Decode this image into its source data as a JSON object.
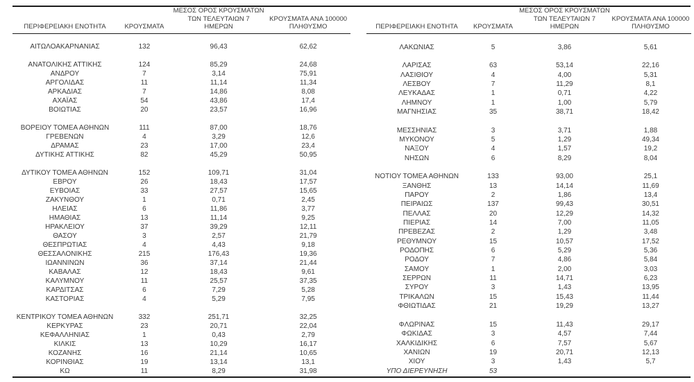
{
  "colors": {
    "text": "#3b3b3b",
    "rule": "#1c1c1c",
    "background": "#ffffff"
  },
  "columns": {
    "region": "ΠΕΡΙΦΕΡΕΙΑΚΗ ΕΝΟΤΗΤΑ",
    "cases": "ΚΡΟΥΣΜΑΤΑ",
    "avg7": "ΜΕΣΟΣ ΟΡΟΣ ΚΡΟΥΣΜΑΤΩΝ\nΤΩΝ ΤΕΛΕΥΤΑΙΩΝ 7\nΗΜΕΡΩΝ",
    "per100k": "ΚΡΟΥΣΜΑΤΑ ΑΝΑ 100000\nΠΛΗΘΥΣΜΟ"
  },
  "left_table": {
    "rows": [
      {
        "spacer": true
      },
      {
        "name": "ΑΙΤΩΛΟΑΚΑΡΝΑΝΙΑΣ",
        "cases": "132",
        "avg7": "96,43",
        "per100k": "62,62"
      },
      {
        "spacer": true
      },
      {
        "name": "ΑΝΑΤΟΛΙΚΗΣ ΑΤΤΙΚΗΣ",
        "cases": "124",
        "avg7": "85,29",
        "per100k": "24,68"
      },
      {
        "name": "ΑΝΔΡΟΥ",
        "cases": "7",
        "avg7": "3,14",
        "per100k": "75,91"
      },
      {
        "name": "ΑΡΓΟΛΙΔΑΣ",
        "cases": "11",
        "avg7": "11,14",
        "per100k": "11,34"
      },
      {
        "name": "ΑΡΚΑΔΙΑΣ",
        "cases": "7",
        "avg7": "14,86",
        "per100k": "8,08"
      },
      {
        "name": "ΑΧΑΪΑΣ",
        "cases": "54",
        "avg7": "43,86",
        "per100k": "17,4"
      },
      {
        "name": "ΒΟΙΩΤΙΑΣ",
        "cases": "20",
        "avg7": "23,57",
        "per100k": "16,96"
      },
      {
        "spacer": true
      },
      {
        "name": "ΒΟΡΕΙΟΥ ΤΟΜΕΑ ΑΘΗΝΩΝ",
        "cases": "111",
        "avg7": "87,00",
        "per100k": "18,76"
      },
      {
        "name": "ΓΡΕΒΕΝΩΝ",
        "cases": "4",
        "avg7": "3,29",
        "per100k": "12,6"
      },
      {
        "name": "ΔΡΑΜΑΣ",
        "cases": "23",
        "avg7": "17,00",
        "per100k": "23,4"
      },
      {
        "name": "ΔΥΤΙΚΗΣ ΑΤΤΙΚΗΣ",
        "cases": "82",
        "avg7": "45,29",
        "per100k": "50,95"
      },
      {
        "spacer": true
      },
      {
        "name": "ΔΥΤΙΚΟΥ ΤΟΜΕΑ ΑΘΗΝΩΝ",
        "cases": "152",
        "avg7": "109,71",
        "per100k": "31,04"
      },
      {
        "name": "ΕΒΡΟΥ",
        "cases": "26",
        "avg7": "18,43",
        "per100k": "17,57"
      },
      {
        "name": "ΕΥΒΟΙΑΣ",
        "cases": "33",
        "avg7": "27,57",
        "per100k": "15,65"
      },
      {
        "name": "ΖΑΚΥΝΘΟΥ",
        "cases": "1",
        "avg7": "0,71",
        "per100k": "2,45"
      },
      {
        "name": "ΗΛΕΙΑΣ",
        "cases": "6",
        "avg7": "11,86",
        "per100k": "3,77"
      },
      {
        "name": "ΗΜΑΘΙΑΣ",
        "cases": "13",
        "avg7": "11,14",
        "per100k": "9,25"
      },
      {
        "name": "ΗΡΑΚΛΕΙΟΥ",
        "cases": "37",
        "avg7": "39,29",
        "per100k": "12,11"
      },
      {
        "name": "ΘΑΣΟΥ",
        "cases": "3",
        "avg7": "2,57",
        "per100k": "21,79"
      },
      {
        "name": "ΘΕΣΠΡΩΤΙΑΣ",
        "cases": "4",
        "avg7": "4,43",
        "per100k": "9,18"
      },
      {
        "name": "ΘΕΣΣΑΛΟΝΙΚΗΣ",
        "cases": "215",
        "avg7": "176,43",
        "per100k": "19,36"
      },
      {
        "name": "ΙΩΑΝΝΙΝΩΝ",
        "cases": "36",
        "avg7": "37,14",
        "per100k": "21,44"
      },
      {
        "name": "ΚΑΒΑΛΑΣ",
        "cases": "12",
        "avg7": "18,43",
        "per100k": "9,61"
      },
      {
        "name": "ΚΑΛΥΜΝΟΥ",
        "cases": "11",
        "avg7": "25,57",
        "per100k": "37,35"
      },
      {
        "name": "ΚΑΡΔΙΤΣΑΣ",
        "cases": "6",
        "avg7": "7,29",
        "per100k": "5,28"
      },
      {
        "name": "ΚΑΣΤΟΡΙΑΣ",
        "cases": "4",
        "avg7": "5,29",
        "per100k": "7,95"
      },
      {
        "spacer": true
      },
      {
        "name": "ΚΕΝΤΡΙΚΟΥ ΤΟΜΕΑ ΑΘΗΝΩΝ",
        "cases": "332",
        "avg7": "251,71",
        "per100k": "32,25"
      },
      {
        "name": "ΚΕΡΚΥΡΑΣ",
        "cases": "23",
        "avg7": "20,71",
        "per100k": "22,04"
      },
      {
        "name": "ΚΕΦΑΛΛΗΝΙΑΣ",
        "cases": "1",
        "avg7": "0,43",
        "per100k": "2,79"
      },
      {
        "name": "ΚΙΛΚΙΣ",
        "cases": "13",
        "avg7": "10,29",
        "per100k": "16,17"
      },
      {
        "name": "ΚΟΖΑΝΗΣ",
        "cases": "16",
        "avg7": "21,14",
        "per100k": "10,65"
      },
      {
        "name": "ΚΟΡΙΝΘΙΑΣ",
        "cases": "19",
        "avg7": "13,14",
        "per100k": "13,1"
      },
      {
        "name": "ΚΩ",
        "cases": "11",
        "avg7": "8,29",
        "per100k": "31,98"
      }
    ]
  },
  "right_table": {
    "rows": [
      {
        "spacer": true
      },
      {
        "name": "ΛΑΚΩΝΙΑΣ",
        "cases": "5",
        "avg7": "3,86",
        "per100k": "5,61"
      },
      {
        "spacer": true
      },
      {
        "name": "ΛΑΡΙΣΑΣ",
        "cases": "63",
        "avg7": "53,14",
        "per100k": "22,16"
      },
      {
        "name": "ΛΑΣΙΘΙΟΥ",
        "cases": "4",
        "avg7": "4,00",
        "per100k": "5,31"
      },
      {
        "name": "ΛΕΣΒΟΥ",
        "cases": "7",
        "avg7": "11,29",
        "per100k": "8,1"
      },
      {
        "name": "ΛΕΥΚΑΔΑΣ",
        "cases": "1",
        "avg7": "0,71",
        "per100k": "4,22"
      },
      {
        "name": "ΛΗΜΝΟΥ",
        "cases": "1",
        "avg7": "1,00",
        "per100k": "5,79"
      },
      {
        "name": "ΜΑΓΝΗΣΙΑΣ",
        "cases": "35",
        "avg7": "38,71",
        "per100k": "18,42"
      },
      {
        "spacer": true
      },
      {
        "name": "ΜΕΣΣΗΝΙΑΣ",
        "cases": "3",
        "avg7": "3,71",
        "per100k": "1,88"
      },
      {
        "name": "ΜΥΚΟΝΟΥ",
        "cases": "5",
        "avg7": "1,29",
        "per100k": "49,34"
      },
      {
        "name": "ΝΑΞΟΥ",
        "cases": "4",
        "avg7": "1,57",
        "per100k": "19,2"
      },
      {
        "name": "ΝΗΣΩΝ",
        "cases": "6",
        "avg7": "8,29",
        "per100k": "8,04"
      },
      {
        "spacer": true
      },
      {
        "name": "ΝΟΤΙΟΥ ΤΟΜΕΑ ΑΘΗΝΩΝ",
        "cases": "133",
        "avg7": "93,00",
        "per100k": "25,1"
      },
      {
        "name": "ΞΑΝΘΗΣ",
        "cases": "13",
        "avg7": "14,14",
        "per100k": "11,69"
      },
      {
        "name": "ΠΑΡΟΥ",
        "cases": "2",
        "avg7": "1,86",
        "per100k": "13,4"
      },
      {
        "name": "ΠΕΙΡΑΙΩΣ",
        "cases": "137",
        "avg7": "99,43",
        "per100k": "30,51"
      },
      {
        "name": "ΠΕΛΛΑΣ",
        "cases": "20",
        "avg7": "12,29",
        "per100k": "14,32"
      },
      {
        "name": "ΠΙΕΡΙΑΣ",
        "cases": "14",
        "avg7": "7,00",
        "per100k": "11,05"
      },
      {
        "name": "ΠΡΕΒΕΖΑΣ",
        "cases": "2",
        "avg7": "1,29",
        "per100k": "3,48"
      },
      {
        "name": "ΡΕΘΥΜΝΟΥ",
        "cases": "15",
        "avg7": "10,57",
        "per100k": "17,52"
      },
      {
        "name": "ΡΟΔΟΠΗΣ",
        "cases": "6",
        "avg7": "5,29",
        "per100k": "5,36"
      },
      {
        "name": "ΡΟΔΟΥ",
        "cases": "7",
        "avg7": "4,86",
        "per100k": "5,84"
      },
      {
        "name": "ΣΑΜΟΥ",
        "cases": "1",
        "avg7": "2,00",
        "per100k": "3,03"
      },
      {
        "name": "ΣΕΡΡΩΝ",
        "cases": "11",
        "avg7": "14,71",
        "per100k": "6,23"
      },
      {
        "name": "ΣΥΡΟΥ",
        "cases": "3",
        "avg7": "1,43",
        "per100k": "13,95"
      },
      {
        "name": "ΤΡΙΚΑΛΩΝ",
        "cases": "15",
        "avg7": "15,43",
        "per100k": "11,44"
      },
      {
        "name": "ΦΘΙΩΤΙΔΑΣ",
        "cases": "21",
        "avg7": "19,29",
        "per100k": "13,27"
      },
      {
        "spacer": true
      },
      {
        "name": "ΦΛΩΡΙΝΑΣ",
        "cases": "15",
        "avg7": "11,43",
        "per100k": "29,17"
      },
      {
        "name": "ΦΩΚΙΔΑΣ",
        "cases": "3",
        "avg7": "4,57",
        "per100k": "7,44"
      },
      {
        "name": "ΧΑΛΚΙΔΙΚΗΣ",
        "cases": "6",
        "avg7": "7,57",
        "per100k": "5,67"
      },
      {
        "name": "ΧΑΝΙΩΝ",
        "cases": "19",
        "avg7": "20,71",
        "per100k": "12,13"
      },
      {
        "name": "ΧΙΟΥ",
        "cases": "3",
        "avg7": "1,43",
        "per100k": "5,7"
      },
      {
        "name": "ΥΠΟ ΔΙΕΡΕΥΝΗΣΗ",
        "cases": "53",
        "avg7": "",
        "per100k": "",
        "italic": true
      }
    ]
  }
}
